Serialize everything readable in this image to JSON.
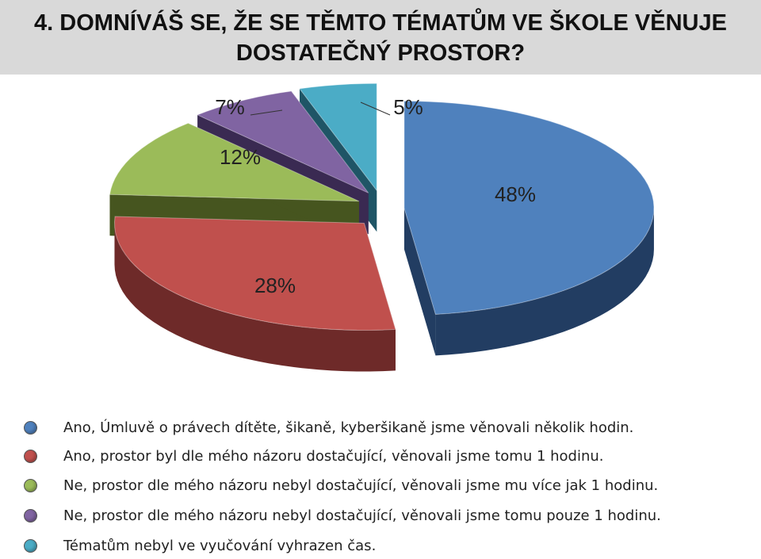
{
  "title": "4. DOMNÍVÁŠ SE, ŽE SE TĚMTO TÉMATŮM VE ŠKOLE VĚNUJE DOSTATEČNÝ PROSTOR?",
  "chart_data": {
    "type": "pie",
    "style": "3d-exploded",
    "legend_position": "bottom",
    "slices": [
      {
        "label": "Ano, Úmluvě o právech dítěte, šikaně, kyberšikaně jsme věnovali několik hodin.",
        "value": 48,
        "display": "48%",
        "color": "#4f81bd",
        "side": "#223d62"
      },
      {
        "label": "Ano, prostor byl dle mého názoru dostačující, věnovali jsme tomu 1 hodinu.",
        "value": 28,
        "display": "28%",
        "color": "#c0504d",
        "side": "#6e2a29"
      },
      {
        "label": "Ne, prostor dle mého názoru nebyl dostačující, věnovali jsme mu více jak 1 hodinu.",
        "value": 12,
        "display": "12%",
        "color": "#9bbb59",
        "side": "#46551f"
      },
      {
        "label": "Ne, prostor dle mého názoru nebyl dostačující, věnovali jsme tomu pouze 1 hodinu.",
        "value": 7,
        "display": "7%",
        "color": "#8064a2",
        "side": "#3a2a52"
      },
      {
        "label": "Tématům nebyl ve vyučování vyhrazen čas.",
        "value": 5,
        "display": "5%",
        "color": "#4bacc6",
        "side": "#1f5566"
      }
    ]
  }
}
